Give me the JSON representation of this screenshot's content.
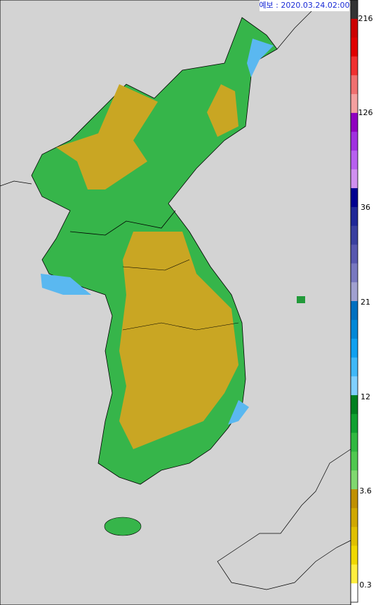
{
  "header": {
    "label": "예보 : 2020.03.24.02:00"
  },
  "legend": {
    "ticks": [
      "216",
      "126",
      "36",
      "21",
      "12",
      "3.6",
      "0.3"
    ]
  }
}
